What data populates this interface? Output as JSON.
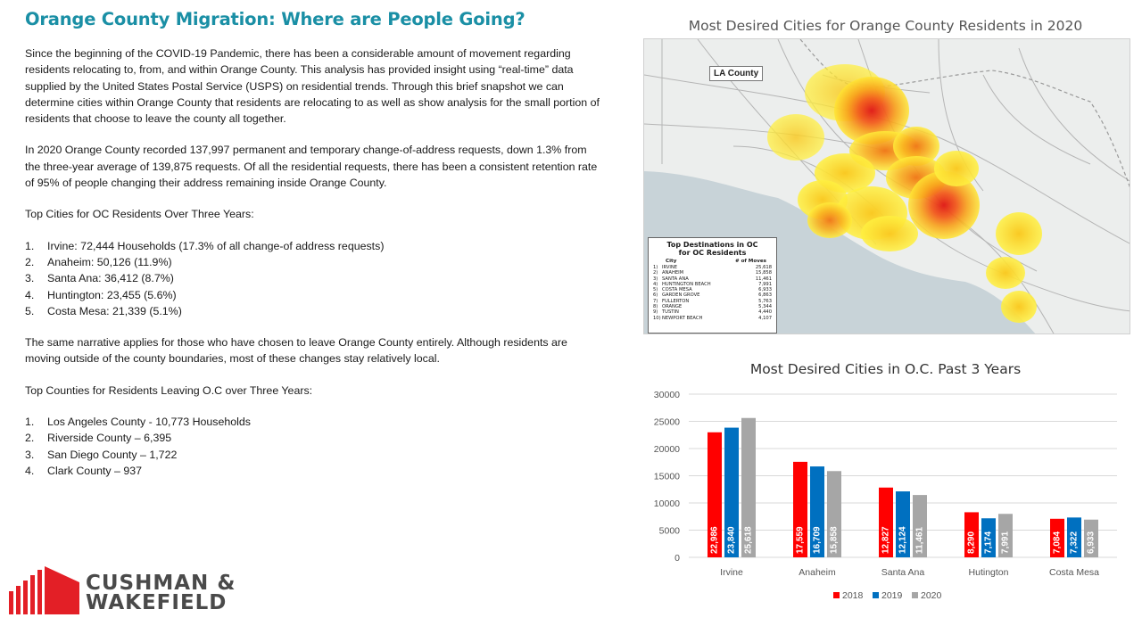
{
  "page": {
    "title": "Orange County Migration: Where are People Going?",
    "paragraphs": [
      "Since the beginning of the COVID-19 Pandemic, there has been a considerable amount of movement regarding residents relocating to, from, and within Orange County. This analysis has provided insight using “real-time” data supplied by the United States Postal Service (USPS) on residential trends. Through this brief snapshot we can determine cities within Orange County that residents are relocating to as well as show analysis for the small portion of residents that choose to leave the county all together.",
      "In 2020 Orange County recorded 137,997 permanent and temporary change-of-address requests, down 1.3% from the three-year average of 139,875 requests. Of all the residential requests, there has been a consistent retention rate of 95% of people changing their address remaining inside Orange County."
    ],
    "cities_heading": "Top Cities for OC Residents Over Three Years:",
    "cities": [
      {
        "num": "1.",
        "text": "Irvine: 72,444 Households (17.3% of all change-of address requests)"
      },
      {
        "num": "2.",
        "text": "Anaheim: 50,126 (11.9%)"
      },
      {
        "num": "3.",
        "text": "Santa Ana: 36,412 (8.7%)"
      },
      {
        "num": "4.",
        "text": "Huntington: 23,455 (5.6%)"
      },
      {
        "num": "5.",
        "text": "Costa Mesa: 21,339 (5.1%)"
      }
    ],
    "narrative": "The same narrative applies for those who have chosen to leave Orange County entirely. Although residents are moving outside of the county boundaries, most of these changes stay relatively local.",
    "counties_heading": "Top Counties for Residents Leaving O.C over Three Years:",
    "counties": [
      {
        "num": "1.",
        "text": "Los Angeles County - 10,773 Households"
      },
      {
        "num": "2.",
        "text": "Riverside County – 6,395"
      },
      {
        "num": "3.",
        "text": "San Diego County – 1,722"
      },
      {
        "num": "4.",
        "text": "Clark County – 937"
      }
    ]
  },
  "logo": {
    "line1": "CUSHMAN &",
    "line2": "WAKEFIELD",
    "color": "#e31f26"
  },
  "map": {
    "title": "Most Desired Cities for Orange County Residents in 2020",
    "la_label": "LA County",
    "legend_title_1": "Top Destinations in OC",
    "legend_title_2": "for OC Residents",
    "legend_col_city": "City",
    "legend_col_moves": "# of Moves",
    "legend_rows": [
      {
        "num": "1)",
        "city": "IRVINE",
        "moves": "25,618"
      },
      {
        "num": "2)",
        "city": "ANAHEIM",
        "moves": "15,858"
      },
      {
        "num": "3)",
        "city": "SANTA ANA",
        "moves": "11,461"
      },
      {
        "num": "4)",
        "city": "HUNTINGTON BEACH",
        "moves": "7,991"
      },
      {
        "num": "5)",
        "city": "COSTA MESA",
        "moves": "6,933"
      },
      {
        "num": "6)",
        "city": "GARDEN GROVE",
        "moves": "6,863"
      },
      {
        "num": "7)",
        "city": "FULLERTON",
        "moves": "5,763"
      },
      {
        "num": "8)",
        "city": "ORANGE",
        "moves": "5,344"
      },
      {
        "num": "9)",
        "city": "TUSTIN",
        "moves": "4,440"
      },
      {
        "num": "10)",
        "city": "NEWPORT BEACH",
        "moves": "4,107"
      }
    ]
  },
  "chart_data": {
    "type": "bar",
    "title": "Most Desired Cities in O.C. Past 3 Years",
    "categories": [
      "Irvine",
      "Anaheim",
      "Santa Ana",
      "Hutington",
      "Costa Mesa"
    ],
    "series": [
      {
        "name": "2018",
        "color": "#ff0000",
        "values": [
          22986,
          17559,
          12827,
          8290,
          7084
        ],
        "labels": [
          "22,986",
          "17,559",
          "12,827",
          "8,290",
          "7,084"
        ]
      },
      {
        "name": "2019",
        "color": "#0070c0",
        "values": [
          23840,
          16709,
          12124,
          7174,
          7322
        ],
        "labels": [
          "23,840",
          "16,709",
          "12,124",
          "7,174",
          "7,322"
        ]
      },
      {
        "name": "2020",
        "color": "#a6a6a6",
        "values": [
          25618,
          15858,
          11461,
          7991,
          6933
        ],
        "labels": [
          "25,618",
          "15,858",
          "11,461",
          "7,991",
          "6,933"
        ]
      }
    ],
    "yticks": [
      "0",
      "5000",
      "10000",
      "15000",
      "20000",
      "25000",
      "30000"
    ],
    "ylim": [
      0,
      30000
    ],
    "grid": true,
    "legend_position": "bottom"
  }
}
